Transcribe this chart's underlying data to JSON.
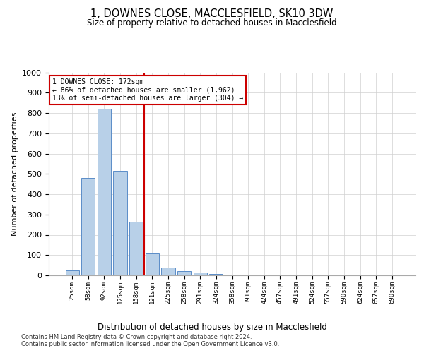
{
  "title_line1": "1, DOWNES CLOSE, MACCLESFIELD, SK10 3DW",
  "title_line2": "Size of property relative to detached houses in Macclesfield",
  "xlabel": "Distribution of detached houses by size in Macclesfield",
  "ylabel": "Number of detached properties",
  "bar_labels": [
    "25sqm",
    "58sqm",
    "92sqm",
    "125sqm",
    "158sqm",
    "191sqm",
    "225sqm",
    "258sqm",
    "291sqm",
    "324sqm",
    "358sqm",
    "391sqm",
    "424sqm",
    "457sqm",
    "491sqm",
    "524sqm",
    "557sqm",
    "590sqm",
    "624sqm",
    "657sqm",
    "690sqm"
  ],
  "bar_values": [
    25,
    480,
    820,
    515,
    265,
    108,
    38,
    20,
    15,
    8,
    5,
    2,
    1,
    1,
    0,
    0,
    0,
    0,
    0,
    0,
    0
  ],
  "bar_color": "#b8d0e8",
  "bar_edge_color": "#5b8dc8",
  "vline_x": 4.5,
  "vline_color": "#cc0000",
  "annotation_line1": "1 DOWNES CLOSE: 172sqm",
  "annotation_line2": "← 86% of detached houses are smaller (1,962)",
  "annotation_line3": "13% of semi-detached houses are larger (304) →",
  "annotation_box_color": "#cc0000",
  "ylim": [
    0,
    1000
  ],
  "yticks": [
    0,
    100,
    200,
    300,
    400,
    500,
    600,
    700,
    800,
    900,
    1000
  ],
  "grid_color": "#d0d0d0",
  "background_color": "#ffffff",
  "footnote": "Contains HM Land Registry data © Crown copyright and database right 2024.\nContains public sector information licensed under the Open Government Licence v3.0.",
  "bar_width": 0.85
}
